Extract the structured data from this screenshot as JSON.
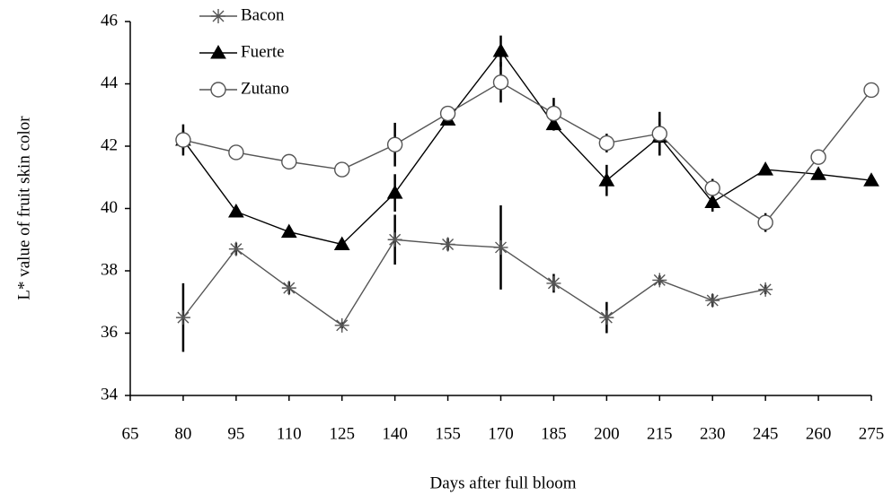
{
  "chart_data": {
    "type": "line",
    "xlabel": "Days after full bloom",
    "ylabel": "L* value of fruit skin color",
    "x": [
      80,
      95,
      110,
      125,
      140,
      155,
      170,
      185,
      200,
      215,
      230,
      245,
      260,
      275
    ],
    "xlim": [
      65,
      275
    ],
    "xticks": [
      65,
      80,
      95,
      110,
      125,
      140,
      155,
      170,
      185,
      200,
      215,
      230,
      245,
      260,
      275
    ],
    "ylim": [
      34,
      46
    ],
    "yticks": [
      34,
      36,
      38,
      40,
      42,
      44,
      46
    ],
    "legend": "upper left",
    "series": [
      {
        "name": "Bacon",
        "color": "#555555",
        "marker": "asterisk",
        "values": [
          36.5,
          38.7,
          37.45,
          36.25,
          39.0,
          38.85,
          38.75,
          37.6,
          36.5,
          37.7,
          37.05,
          37.4,
          null,
          null
        ],
        "errors": [
          1.1,
          0.2,
          0.2,
          0.1,
          0.8,
          0.2,
          1.35,
          0.3,
          0.5,
          0.15,
          0.2,
          0.15,
          null,
          null
        ]
      },
      {
        "name": "Fuerte",
        "color": "#000000",
        "marker": "triangle",
        "values": [
          42.2,
          39.9,
          39.25,
          38.85,
          40.5,
          42.85,
          45.05,
          42.7,
          40.9,
          42.3,
          40.2,
          41.25,
          41.1,
          40.9
        ],
        "errors": [
          0.5,
          0.15,
          0.15,
          0.1,
          0.6,
          0.15,
          0.5,
          0.2,
          0.5,
          0.6,
          0.3,
          0.1,
          0.1,
          0.1
        ]
      },
      {
        "name": "Zutano",
        "color": "#555555",
        "marker": "circle",
        "values": [
          42.2,
          41.8,
          41.5,
          41.25,
          42.05,
          43.05,
          44.05,
          43.05,
          42.1,
          42.4,
          40.65,
          39.55,
          41.65,
          43.8
        ],
        "errors": [
          0.3,
          0.1,
          0.1,
          0.1,
          0.7,
          0.15,
          0.65,
          0.5,
          0.3,
          0.7,
          0.3,
          0.3,
          0.1,
          0.1
        ]
      }
    ]
  }
}
